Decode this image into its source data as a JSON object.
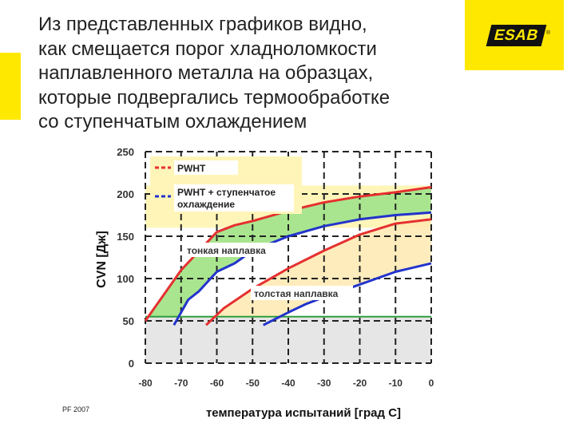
{
  "slide": {
    "title_lines": [
      "Из представленных графиков видно,",
      "как смещается порог хладноломкости",
      "наплавленного металла на образцах,",
      "которые подвергались термообработке",
      "со ступенчатым охлаждением"
    ],
    "logo_text": "ESAB",
    "logo_reg": "®",
    "footer": "PF 2007",
    "colors": {
      "accent": "#ffe800",
      "logo_bg": "#ffe800"
    }
  },
  "chart_data": {
    "type": "line",
    "xlabel": "температура испытаний [град С]",
    "ylabel": "CVN [Дж]",
    "xlim": [
      -80,
      0
    ],
    "ylim": [
      0,
      250
    ],
    "x_ticks": [
      "-80",
      "-70",
      "-60",
      "-50",
      "-40",
      "-30",
      "-20",
      "-10",
      "0"
    ],
    "y_ticks": [
      "0",
      "50",
      "100",
      "150",
      "200",
      "250"
    ],
    "grid": true,
    "legend_placement": "top-left",
    "legend": [
      {
        "label": "PWHT",
        "color": "#e53030",
        "style": "dashed"
      },
      {
        "label": "PWHT + ступенчатое охлаждение",
        "color": "#2233cc",
        "style": "dashed"
      }
    ],
    "series": [
      {
        "name": "тонкая наплавка PWHT",
        "color": "#e53030",
        "x": [
          -80,
          -75,
          -70,
          -60,
          -55,
          -50,
          -40,
          -30,
          -20,
          -10,
          0
        ],
        "y": [
          50,
          80,
          110,
          155,
          163,
          168,
          180,
          190,
          197,
          202,
          208
        ]
      },
      {
        "name": "тонкая наплавка PWHT + ступенчатое охлаждение",
        "color": "#2233cc",
        "x": [
          -72,
          -68,
          -65,
          -60,
          -55,
          -50,
          -40,
          -30,
          -20,
          -10,
          0
        ],
        "y": [
          45,
          75,
          85,
          108,
          118,
          133,
          150,
          162,
          170,
          175,
          178
        ]
      },
      {
        "name": "толстая наплавка PWHT",
        "color": "#e53030",
        "x": [
          -63,
          -58,
          -50,
          -40,
          -30,
          -20,
          -10,
          0
        ],
        "y": [
          45,
          65,
          88,
          112,
          133,
          152,
          165,
          170
        ]
      },
      {
        "name": "толстая наплавка PWHT + ступенчатое охлаждение",
        "color": "#2233cc",
        "x": [
          -47,
          -40,
          -35,
          -30,
          -20,
          -10,
          0
        ],
        "y": [
          45,
          60,
          70,
          78,
          93,
          108,
          118
        ]
      }
    ],
    "annotations": [
      "тонкая наплавка",
      "толстая наплавка"
    ],
    "regions": [
      {
        "name": "upper-shelf",
        "y_from": 160,
        "y_to": 210,
        "color": "#fff5b8"
      },
      {
        "name": "lower-shelf",
        "y_from": 0,
        "y_to": 55,
        "color": "#e6e6e6"
      }
    ],
    "reference_line": {
      "y": 55,
      "color": "#2e9e3a"
    },
    "band_colors": {
      "thin": "#a9e58f",
      "thick": "#ffe9b0"
    }
  }
}
